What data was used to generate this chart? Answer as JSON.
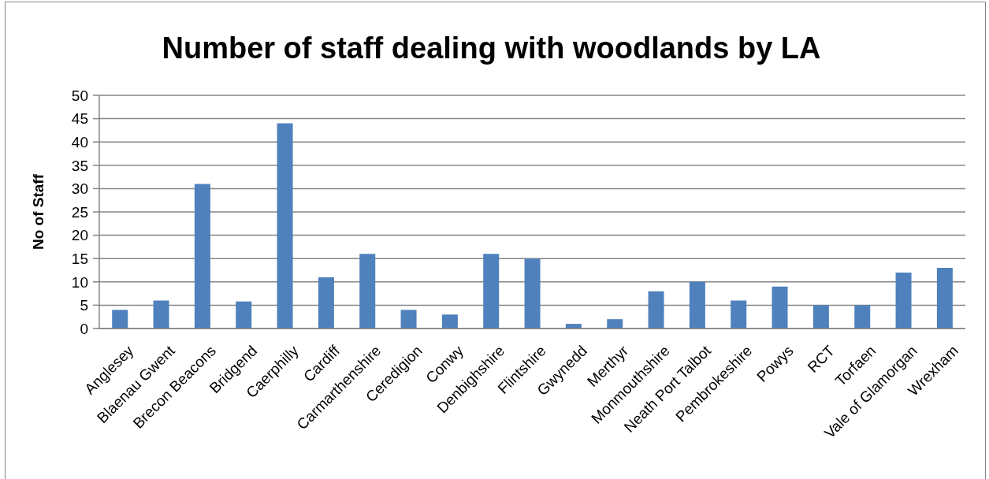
{
  "chart_data": {
    "type": "bar",
    "title": "Number of staff dealing with woodlands by LA",
    "ylabel": "No of Staff",
    "categories": [
      "Anglesey",
      "Blaenau Gwent",
      "Brecon Beacons",
      "Bridgend",
      "Caerphilly",
      "Cardiff",
      "Carmarthenshire",
      "Ceredigion",
      "Conwy",
      "Denbighshire",
      "Flintshire",
      "Gwynedd",
      "Merthyr",
      "Monmouthshire",
      "Neath Port Talbot",
      "Pembrokeshire",
      "Powys",
      "RCT",
      "Torfaen",
      "Vale of Glamorgan",
      "Wrexham"
    ],
    "values": [
      4,
      6,
      31,
      5.8,
      44,
      11,
      16,
      4,
      3,
      16,
      15,
      1,
      2,
      8,
      10,
      6,
      9,
      5,
      5,
      12,
      13
    ],
    "color": "#4f81bd",
    "ylim": [
      0,
      50
    ],
    "yticks": [
      0,
      5,
      10,
      15,
      20,
      25,
      30,
      35,
      40,
      45,
      50
    ],
    "grid": "y"
  }
}
